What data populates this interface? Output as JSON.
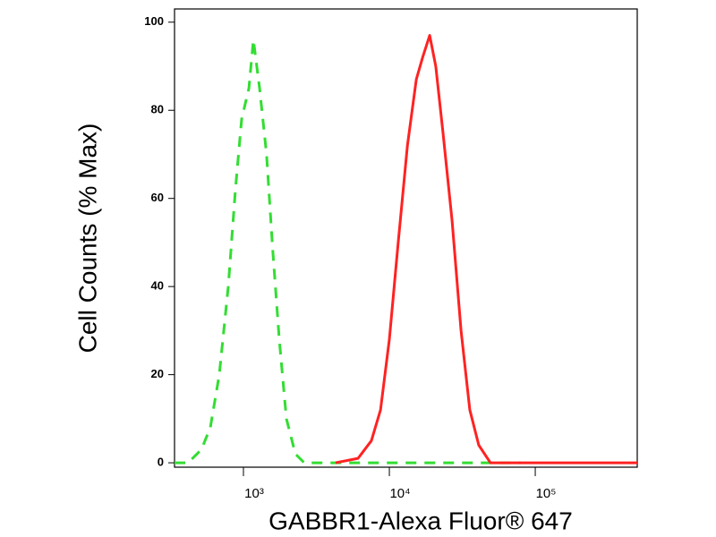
{
  "chart_data": {
    "type": "line",
    "xlabel": "GABBR1-Alexa Fluor® 647",
    "ylabel": "Cell Counts (% Max)",
    "xscale": "log",
    "xlim": [
      337,
      500000
    ],
    "ylim": [
      -1,
      103
    ],
    "xticks": [
      {
        "value": 1000,
        "label": "10³"
      },
      {
        "value": 10000,
        "label": "10⁴"
      },
      {
        "value": 100000,
        "label": "10⁵"
      }
    ],
    "yticks": [
      0,
      20,
      40,
      60,
      80,
      100
    ],
    "series": [
      {
        "color": "#33dd33",
        "linestyle": "dashed",
        "x": [
          337,
          417,
          515,
          593,
          683,
          787,
          881,
          972,
          1090,
          1170,
          1290,
          1440,
          1590,
          1760,
          1970,
          2270,
          2610,
          80000
        ],
        "values": [
          0,
          0,
          3,
          8,
          20,
          40,
          62,
          78,
          85,
          96,
          85,
          70,
          48,
          28,
          10,
          2,
          0,
          0
        ]
      },
      {
        "color": "#ff2222",
        "linestyle": "solid",
        "x": [
          4280,
          6100,
          7530,
          8700,
          10000,
          11500,
          13300,
          15300,
          16900,
          18900,
          20800,
          23300,
          26900,
          31000,
          35600,
          41000,
          49300,
          500000
        ],
        "values": [
          0,
          1,
          5,
          12,
          28,
          50,
          72,
          87,
          92,
          97,
          90,
          75,
          55,
          30,
          12,
          4,
          0,
          0
        ]
      }
    ]
  }
}
